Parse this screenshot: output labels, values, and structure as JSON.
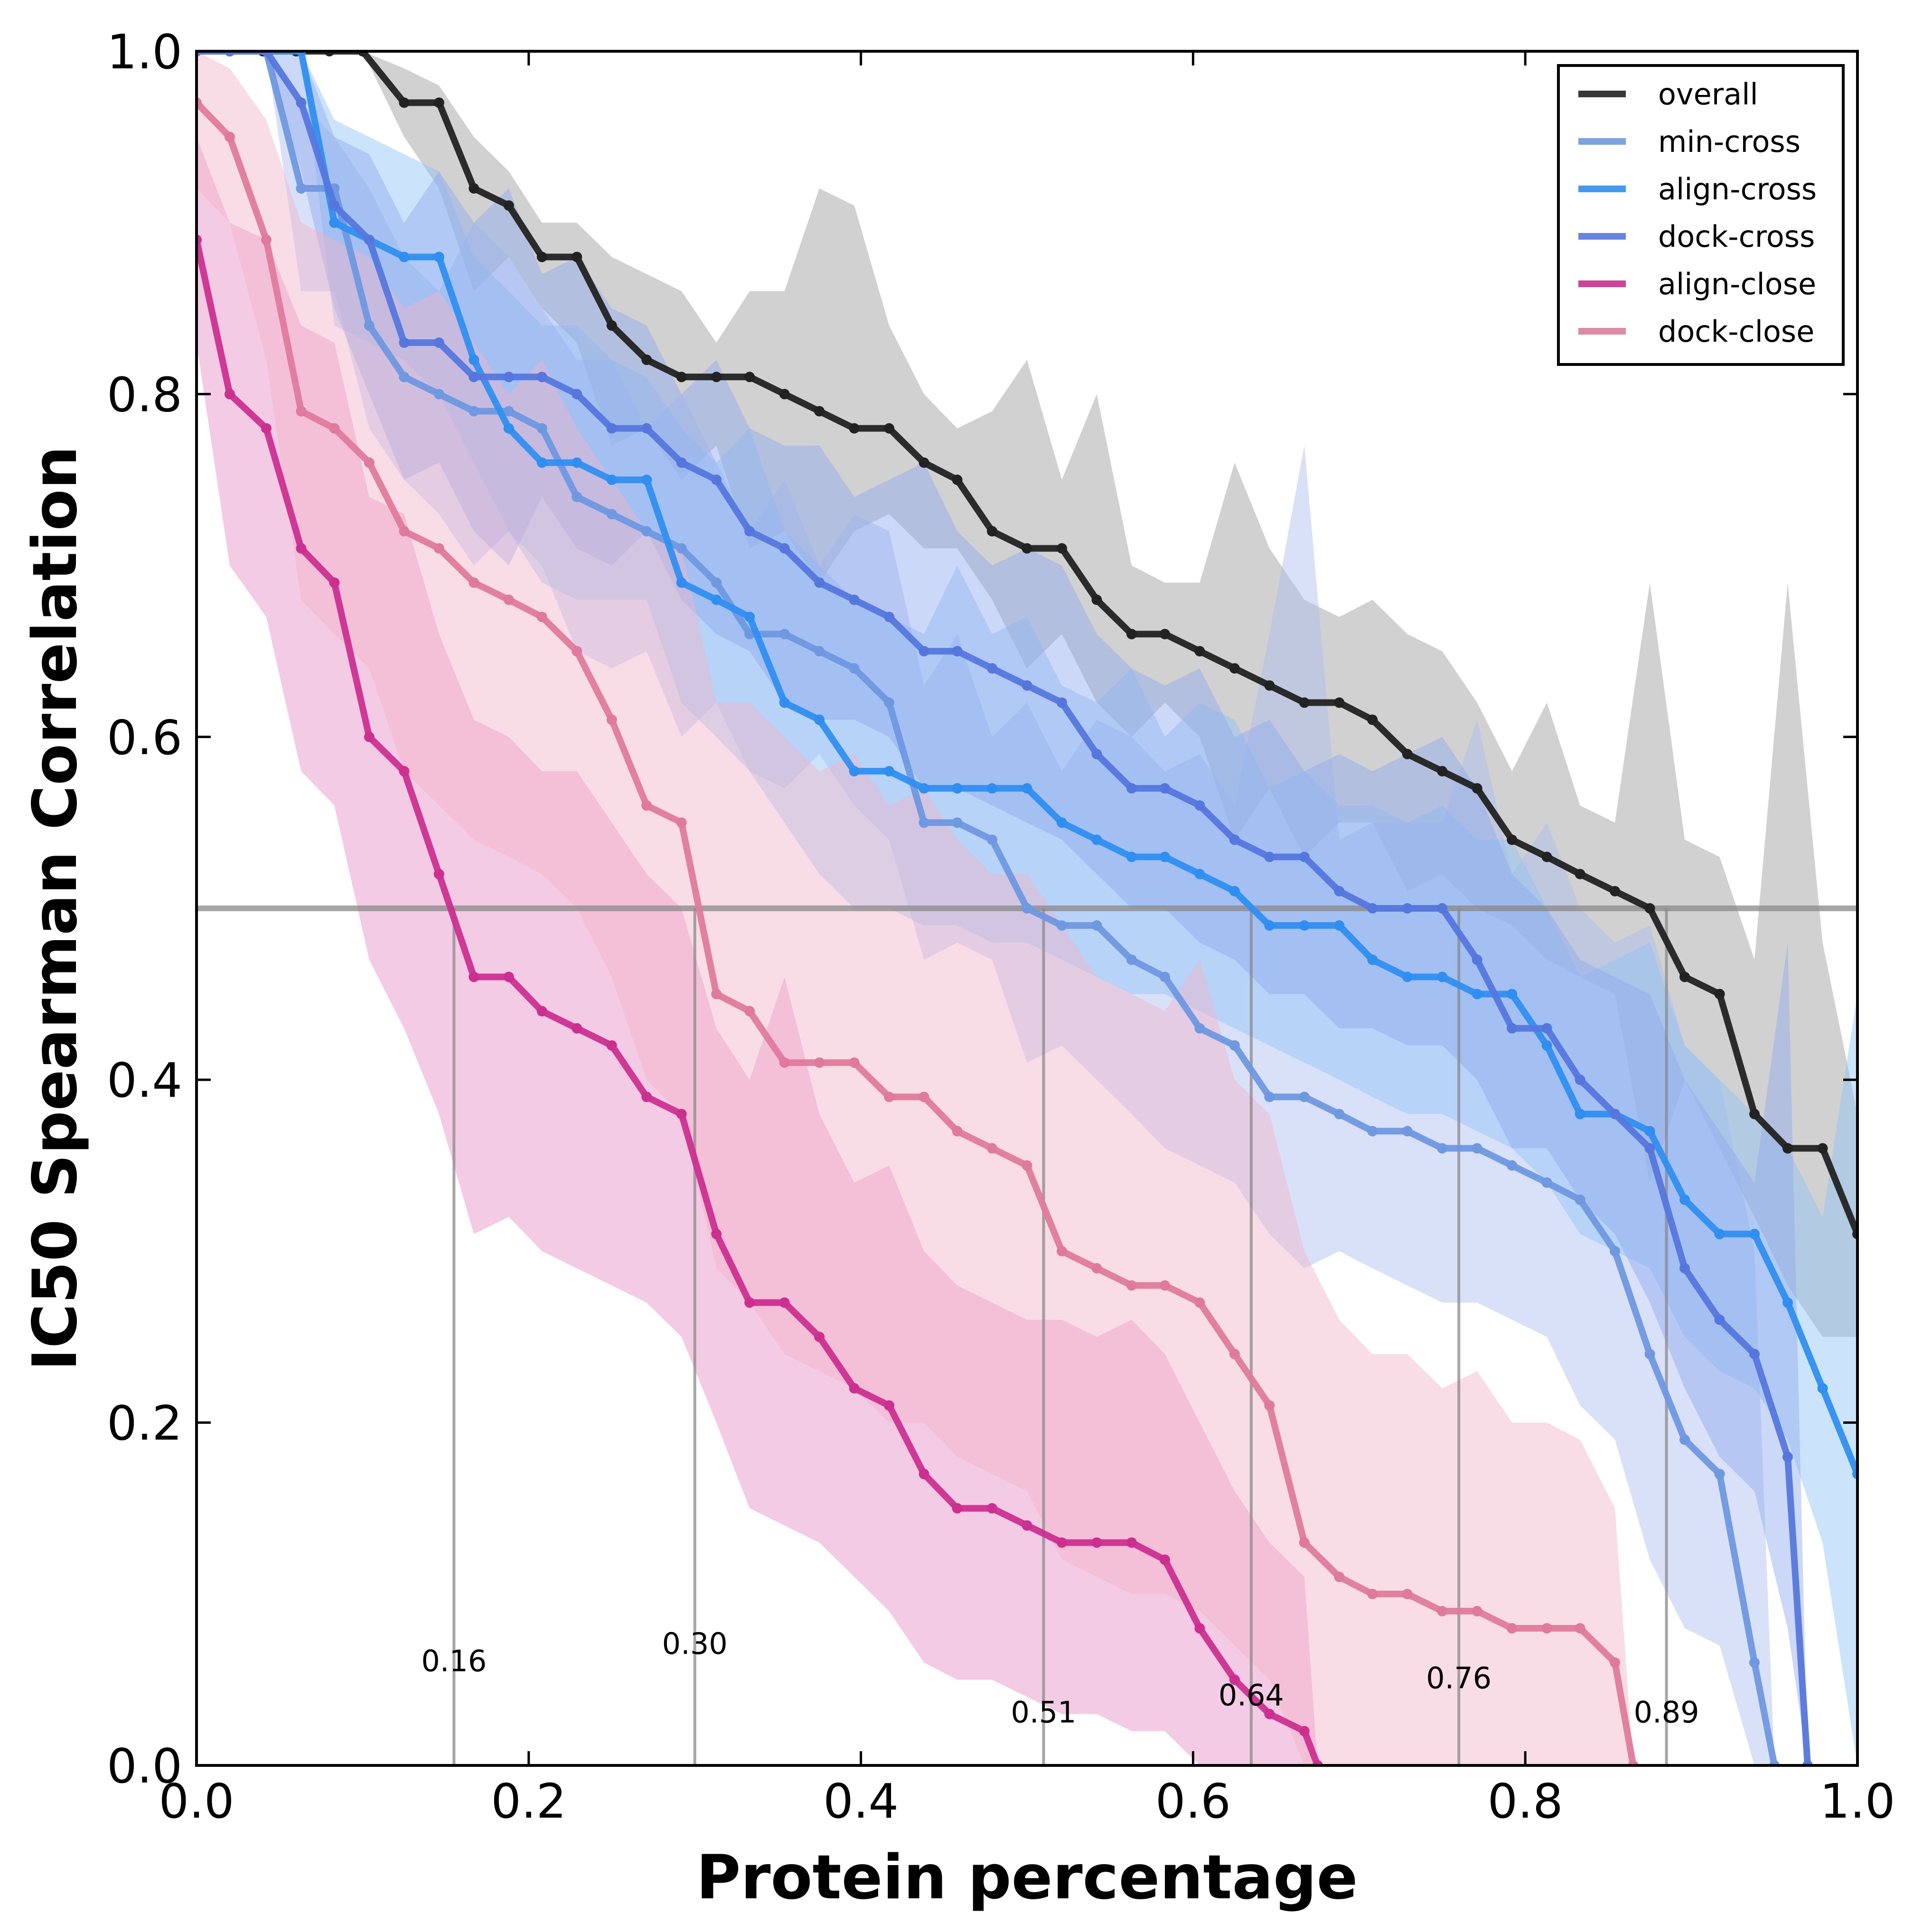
{
  "chart_data": {
    "type": "line",
    "title": "",
    "xlabel": "Protein percentage",
    "ylabel": "IC50 Spearman Correlation",
    "xlim": [
      0.0,
      1.0
    ],
    "ylim": [
      0.0,
      1.0
    ],
    "x_ticks": [
      "0.0",
      "0.2",
      "0.4",
      "0.6",
      "0.8",
      "1.0"
    ],
    "y_ticks": [
      "0.0",
      "0.2",
      "0.4",
      "0.6",
      "0.8",
      "1.0"
    ],
    "grid": false,
    "legend_position": "top-right",
    "reference_line": {
      "y": 0.5
    },
    "threshold_markers": [
      {
        "x": 0.155,
        "label": "0.16"
      },
      {
        "x": 0.3,
        "label": "0.30"
      },
      {
        "x": 0.51,
        "label": "0.51"
      },
      {
        "x": 0.635,
        "label": "0.64"
      },
      {
        "x": 0.76,
        "label": "0.76"
      },
      {
        "x": 0.885,
        "label": "0.89"
      }
    ],
    "series": [
      {
        "name": "overall",
        "color": "#222222",
        "band_color": "#9a9a9a",
        "x": [
          0.0,
          0.02,
          0.04,
          0.06,
          0.08,
          0.1,
          0.125,
          0.146,
          0.167,
          0.188,
          0.208,
          0.229,
          0.25,
          0.271,
          0.292,
          0.313,
          0.333,
          0.354,
          0.375,
          0.396,
          0.417,
          0.438,
          0.458,
          0.479,
          0.5,
          0.521,
          0.542,
          0.563,
          0.583,
          0.604,
          0.625,
          0.646,
          0.667,
          0.688,
          0.708,
          0.729,
          0.75,
          0.771,
          0.792,
          0.813,
          0.833,
          0.854,
          0.875,
          0.896,
          0.917,
          0.938,
          0.958,
          0.979,
          1.0
        ],
        "y": [
          1.0,
          1.0,
          1.0,
          1.0,
          1.0,
          1.0,
          0.97,
          0.97,
          0.92,
          0.91,
          0.88,
          0.88,
          0.84,
          0.82,
          0.81,
          0.81,
          0.81,
          0.8,
          0.79,
          0.78,
          0.78,
          0.76,
          0.75,
          0.72,
          0.71,
          0.71,
          0.68,
          0.66,
          0.66,
          0.65,
          0.64,
          0.63,
          0.62,
          0.62,
          0.61,
          0.59,
          0.58,
          0.57,
          0.54,
          0.53,
          0.52,
          0.51,
          0.5,
          0.46,
          0.45,
          0.38,
          0.36,
          0.36,
          0.31
        ],
        "band_upper": [
          1.0,
          1.0,
          1.0,
          1.0,
          1.0,
          1.0,
          0.99,
          0.98,
          0.95,
          0.93,
          0.9,
          0.9,
          0.88,
          0.87,
          0.86,
          0.83,
          0.86,
          0.86,
          0.92,
          0.91,
          0.84,
          0.8,
          0.78,
          0.79,
          0.82,
          0.75,
          0.8,
          0.7,
          0.69,
          0.69,
          0.76,
          0.71,
          0.68,
          0.67,
          0.68,
          0.66,
          0.65,
          0.62,
          0.58,
          0.62,
          0.56,
          0.55,
          0.69,
          0.54,
          0.53,
          0.47,
          0.69,
          0.48,
          0.38
        ],
        "band_lower": [
          1.0,
          1.0,
          1.0,
          1.0,
          1.0,
          1.0,
          0.95,
          0.92,
          0.86,
          0.88,
          0.85,
          0.83,
          0.77,
          0.78,
          0.75,
          0.77,
          0.71,
          0.72,
          0.69,
          0.72,
          0.73,
          0.71,
          0.71,
          0.68,
          0.64,
          0.66,
          0.62,
          0.6,
          0.62,
          0.6,
          0.54,
          0.57,
          0.53,
          0.55,
          0.55,
          0.51,
          0.52,
          0.5,
          0.49,
          0.47,
          0.46,
          0.45,
          0.34,
          0.4,
          0.36,
          0.32,
          0.28,
          0.25,
          0.25
        ]
      },
      {
        "name": "min-cross",
        "color": "#6e98e0",
        "band_color": "#aabcf0",
        "x": [
          0.0,
          0.02,
          0.042,
          0.063,
          0.083,
          0.104,
          0.125,
          0.146,
          0.167,
          0.188,
          0.208,
          0.229,
          0.25,
          0.271,
          0.292,
          0.313,
          0.333,
          0.354,
          0.375,
          0.396,
          0.417,
          0.438,
          0.458,
          0.479,
          0.5,
          0.521,
          0.542,
          0.563,
          0.583,
          0.604,
          0.625,
          0.646,
          0.667,
          0.688,
          0.708,
          0.729,
          0.75,
          0.771,
          0.792,
          0.813,
          0.833,
          0.854,
          0.875,
          0.896,
          0.917,
          0.938,
          0.95
        ],
        "y": [
          1.0,
          1.0,
          1.0,
          0.92,
          0.92,
          0.84,
          0.81,
          0.8,
          0.79,
          0.79,
          0.78,
          0.74,
          0.73,
          0.72,
          0.71,
          0.69,
          0.66,
          0.66,
          0.65,
          0.64,
          0.62,
          0.55,
          0.55,
          0.54,
          0.5,
          0.49,
          0.49,
          0.47,
          0.46,
          0.43,
          0.42,
          0.39,
          0.39,
          0.38,
          0.37,
          0.37,
          0.36,
          0.36,
          0.35,
          0.34,
          0.33,
          0.3,
          0.24,
          0.19,
          0.17,
          0.06,
          0.0
        ],
        "band_upper": [
          1.0,
          1.0,
          1.0,
          0.97,
          0.95,
          0.92,
          0.88,
          0.86,
          0.9,
          0.88,
          0.85,
          0.82,
          0.82,
          0.78,
          0.8,
          0.76,
          0.72,
          0.75,
          0.7,
          0.73,
          0.72,
          0.63,
          0.66,
          0.6,
          0.62,
          0.58,
          0.61,
          0.6,
          0.58,
          0.59,
          0.56,
          0.66,
          0.77,
          0.54,
          0.55,
          0.55,
          0.55,
          0.61,
          0.52,
          0.55,
          0.5,
          0.48,
          0.49,
          0.42,
          0.4,
          0.3,
          0.0
        ],
        "band_lower": [
          1.0,
          1.0,
          1.0,
          0.86,
          0.86,
          0.78,
          0.75,
          0.73,
          0.7,
          0.72,
          0.7,
          0.65,
          0.64,
          0.65,
          0.6,
          0.62,
          0.58,
          0.57,
          0.59,
          0.56,
          0.54,
          0.47,
          0.48,
          0.47,
          0.41,
          0.42,
          0.4,
          0.38,
          0.36,
          0.35,
          0.34,
          0.31,
          0.29,
          0.3,
          0.29,
          0.28,
          0.27,
          0.27,
          0.26,
          0.25,
          0.21,
          0.19,
          0.12,
          0.08,
          0.07,
          0.0,
          0.0
        ]
      },
      {
        "name": "align-cross",
        "color": "#2f8ff0",
        "band_color": "#8ec3f6",
        "x": [
          0.0,
          0.02,
          0.042,
          0.063,
          0.083,
          0.104,
          0.125,
          0.146,
          0.167,
          0.188,
          0.208,
          0.229,
          0.25,
          0.271,
          0.292,
          0.313,
          0.333,
          0.354,
          0.375,
          0.396,
          0.417,
          0.438,
          0.458,
          0.479,
          0.5,
          0.521,
          0.542,
          0.563,
          0.583,
          0.604,
          0.625,
          0.646,
          0.667,
          0.688,
          0.708,
          0.729,
          0.75,
          0.771,
          0.792,
          0.813,
          0.833,
          0.854,
          0.875,
          0.896,
          0.917,
          0.938,
          0.958,
          0.979,
          1.0
        ],
        "y": [
          1.0,
          1.0,
          1.0,
          1.0,
          0.9,
          0.89,
          0.88,
          0.88,
          0.82,
          0.78,
          0.76,
          0.76,
          0.75,
          0.75,
          0.69,
          0.68,
          0.67,
          0.62,
          0.61,
          0.58,
          0.58,
          0.57,
          0.57,
          0.57,
          0.57,
          0.55,
          0.54,
          0.53,
          0.53,
          0.52,
          0.51,
          0.49,
          0.49,
          0.49,
          0.47,
          0.46,
          0.46,
          0.45,
          0.45,
          0.42,
          0.38,
          0.38,
          0.37,
          0.33,
          0.31,
          0.31,
          0.27,
          0.22,
          0.17
        ],
        "band_upper": [
          1.0,
          1.0,
          1.0,
          1.0,
          0.96,
          0.95,
          0.94,
          0.93,
          0.88,
          0.86,
          0.84,
          0.84,
          0.82,
          0.81,
          0.78,
          0.76,
          0.78,
          0.72,
          0.7,
          0.68,
          0.67,
          0.66,
          0.7,
          0.66,
          0.67,
          0.63,
          0.62,
          0.64,
          0.6,
          0.62,
          0.61,
          0.57,
          0.58,
          0.56,
          0.56,
          0.55,
          0.56,
          0.54,
          0.54,
          0.5,
          0.46,
          0.47,
          0.48,
          0.42,
          0.4,
          0.38,
          0.36,
          0.32,
          0.45
        ],
        "band_lower": [
          1.0,
          1.0,
          1.0,
          1.0,
          0.84,
          0.83,
          0.82,
          0.8,
          0.76,
          0.72,
          0.69,
          0.68,
          0.68,
          0.68,
          0.62,
          0.6,
          0.58,
          0.55,
          0.52,
          0.5,
          0.5,
          0.49,
          0.49,
          0.48,
          0.48,
          0.47,
          0.46,
          0.45,
          0.45,
          0.44,
          0.43,
          0.42,
          0.41,
          0.4,
          0.39,
          0.38,
          0.38,
          0.37,
          0.36,
          0.34,
          0.31,
          0.3,
          0.29,
          0.25,
          0.23,
          0.22,
          0.19,
          0.13,
          0.0
        ]
      },
      {
        "name": "dock-cross",
        "color": "#5577dd",
        "band_color": "#8ea9ee",
        "x": [
          0.0,
          0.02,
          0.042,
          0.063,
          0.083,
          0.104,
          0.125,
          0.146,
          0.167,
          0.188,
          0.208,
          0.229,
          0.25,
          0.271,
          0.292,
          0.313,
          0.333,
          0.354,
          0.375,
          0.396,
          0.417,
          0.438,
          0.458,
          0.479,
          0.5,
          0.521,
          0.542,
          0.563,
          0.583,
          0.604,
          0.625,
          0.646,
          0.667,
          0.688,
          0.708,
          0.729,
          0.75,
          0.771,
          0.792,
          0.813,
          0.833,
          0.854,
          0.875,
          0.896,
          0.917,
          0.938,
          0.958,
          0.97
        ],
        "y": [
          1.0,
          1.0,
          1.0,
          0.97,
          0.91,
          0.89,
          0.83,
          0.83,
          0.81,
          0.81,
          0.81,
          0.8,
          0.78,
          0.78,
          0.76,
          0.75,
          0.72,
          0.71,
          0.69,
          0.68,
          0.67,
          0.65,
          0.65,
          0.64,
          0.63,
          0.62,
          0.59,
          0.57,
          0.57,
          0.56,
          0.54,
          0.53,
          0.53,
          0.51,
          0.5,
          0.5,
          0.5,
          0.47,
          0.43,
          0.43,
          0.4,
          0.38,
          0.36,
          0.29,
          0.26,
          0.24,
          0.18,
          0.0
        ],
        "band_upper": [
          1.0,
          1.0,
          1.0,
          1.0,
          0.95,
          0.94,
          0.9,
          0.93,
          0.9,
          0.92,
          0.87,
          0.88,
          0.85,
          0.84,
          0.8,
          0.82,
          0.78,
          0.77,
          0.77,
          0.74,
          0.75,
          0.76,
          0.72,
          0.7,
          0.71,
          0.7,
          0.66,
          0.64,
          0.63,
          0.64,
          0.6,
          0.61,
          0.58,
          0.59,
          0.58,
          0.59,
          0.6,
          0.57,
          0.52,
          0.5,
          0.47,
          0.46,
          0.45,
          0.4,
          0.37,
          0.34,
          0.48,
          0.0
        ],
        "band_lower": [
          1.0,
          1.0,
          1.0,
          0.93,
          0.85,
          0.8,
          0.75,
          0.76,
          0.72,
          0.7,
          0.74,
          0.71,
          0.7,
          0.72,
          0.68,
          0.66,
          0.65,
          0.62,
          0.61,
          0.61,
          0.6,
          0.57,
          0.57,
          0.56,
          0.55,
          0.54,
          0.52,
          0.5,
          0.5,
          0.48,
          0.47,
          0.45,
          0.45,
          0.43,
          0.43,
          0.42,
          0.42,
          0.4,
          0.36,
          0.36,
          0.33,
          0.31,
          0.27,
          0.22,
          0.18,
          0.16,
          0.08,
          0.0
        ]
      },
      {
        "name": "align-close",
        "color": "#cc2f90",
        "band_color": "#e68cc4",
        "x": [
          0.0,
          0.02,
          0.042,
          0.063,
          0.083,
          0.104,
          0.125,
          0.146,
          0.167,
          0.188,
          0.208,
          0.229,
          0.25,
          0.271,
          0.292,
          0.313,
          0.333,
          0.354,
          0.375,
          0.396,
          0.417,
          0.438,
          0.458,
          0.479,
          0.5,
          0.521,
          0.542,
          0.563,
          0.583,
          0.604,
          0.625,
          0.646,
          0.667,
          0.675
        ],
        "y": [
          0.89,
          0.8,
          0.78,
          0.71,
          0.69,
          0.6,
          0.58,
          0.52,
          0.46,
          0.46,
          0.44,
          0.43,
          0.42,
          0.39,
          0.38,
          0.31,
          0.27,
          0.27,
          0.25,
          0.22,
          0.21,
          0.17,
          0.15,
          0.15,
          0.14,
          0.13,
          0.13,
          0.13,
          0.12,
          0.08,
          0.05,
          0.03,
          0.02,
          0.0
        ],
        "band_upper": [
          0.95,
          0.9,
          0.89,
          0.84,
          0.83,
          0.74,
          0.73,
          0.66,
          0.61,
          0.6,
          0.58,
          0.58,
          0.55,
          0.52,
          0.5,
          0.43,
          0.4,
          0.46,
          0.38,
          0.34,
          0.35,
          0.3,
          0.28,
          0.27,
          0.26,
          0.26,
          0.25,
          0.26,
          0.24,
          0.2,
          0.16,
          0.13,
          0.11,
          0.0
        ],
        "band_lower": [
          0.83,
          0.7,
          0.67,
          0.58,
          0.56,
          0.47,
          0.43,
          0.38,
          0.31,
          0.32,
          0.3,
          0.29,
          0.28,
          0.27,
          0.25,
          0.2,
          0.15,
          0.14,
          0.13,
          0.11,
          0.09,
          0.06,
          0.05,
          0.05,
          0.04,
          0.03,
          0.03,
          0.02,
          0.02,
          0.0,
          0.0,
          0.0,
          0.0,
          0.0
        ]
      },
      {
        "name": "dock-close",
        "color": "#e07a9c",
        "band_color": "#f2b3c8",
        "x": [
          0.0,
          0.02,
          0.042,
          0.063,
          0.083,
          0.104,
          0.125,
          0.146,
          0.167,
          0.188,
          0.208,
          0.229,
          0.25,
          0.271,
          0.292,
          0.313,
          0.333,
          0.354,
          0.375,
          0.396,
          0.417,
          0.438,
          0.458,
          0.479,
          0.5,
          0.521,
          0.542,
          0.563,
          0.583,
          0.604,
          0.625,
          0.646,
          0.667,
          0.688,
          0.708,
          0.729,
          0.75,
          0.771,
          0.792,
          0.813,
          0.833,
          0.854,
          0.865
        ],
        "y": [
          0.97,
          0.95,
          0.89,
          0.79,
          0.78,
          0.76,
          0.72,
          0.71,
          0.69,
          0.68,
          0.67,
          0.65,
          0.61,
          0.56,
          0.55,
          0.45,
          0.44,
          0.41,
          0.41,
          0.41,
          0.39,
          0.39,
          0.37,
          0.36,
          0.35,
          0.3,
          0.29,
          0.28,
          0.28,
          0.27,
          0.24,
          0.21,
          0.13,
          0.11,
          0.1,
          0.1,
          0.09,
          0.09,
          0.08,
          0.08,
          0.08,
          0.06,
          0.0
        ],
        "band_upper": [
          1.0,
          0.99,
          0.96,
          0.9,
          0.89,
          0.88,
          0.85,
          0.86,
          0.83,
          0.8,
          0.82,
          0.78,
          0.75,
          0.72,
          0.71,
          0.62,
          0.62,
          0.6,
          0.58,
          0.59,
          0.56,
          0.57,
          0.54,
          0.52,
          0.52,
          0.49,
          0.46,
          0.45,
          0.44,
          0.47,
          0.4,
          0.38,
          0.3,
          0.26,
          0.24,
          0.24,
          0.22,
          0.23,
          0.2,
          0.2,
          0.19,
          0.15,
          0.0
        ],
        "band_lower": [
          0.92,
          0.9,
          0.82,
          0.68,
          0.66,
          0.64,
          0.58,
          0.56,
          0.54,
          0.53,
          0.52,
          0.5,
          0.46,
          0.4,
          0.38,
          0.29,
          0.27,
          0.24,
          0.23,
          0.22,
          0.2,
          0.2,
          0.18,
          0.17,
          0.16,
          0.12,
          0.11,
          0.1,
          0.1,
          0.09,
          0.07,
          0.05,
          0.0,
          0.0,
          0.0,
          0.0,
          0.0,
          0.0,
          0.0,
          0.0,
          0.0,
          0.0,
          0.0
        ]
      }
    ]
  }
}
